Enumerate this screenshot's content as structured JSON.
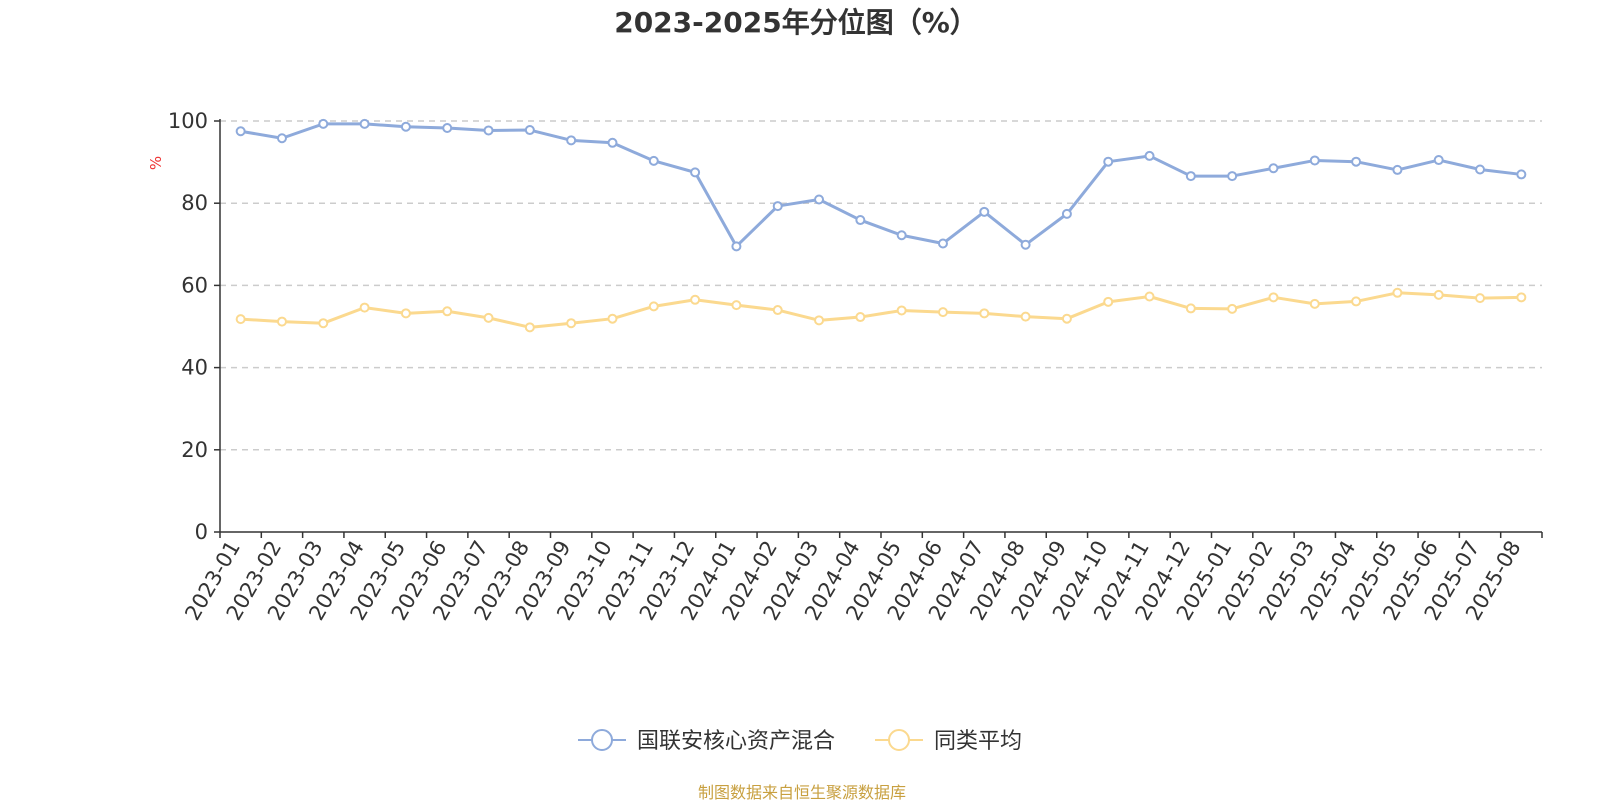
{
  "chart_data": {
    "type": "line",
    "title": "2023-2025年分位图（%）",
    "ylabel": "%",
    "ylim": [
      0,
      100
    ],
    "yticks": [
      0,
      20,
      40,
      60,
      80,
      100
    ],
    "grid": true,
    "legend_position": "bottom-center",
    "categories": [
      "2023-01",
      "2023-02",
      "2023-03",
      "2023-04",
      "2023-05",
      "2023-06",
      "2023-07",
      "2023-08",
      "2023-09",
      "2023-10",
      "2023-11",
      "2023-12",
      "2024-01",
      "2024-02",
      "2024-03",
      "2024-04",
      "2024-05",
      "2024-06",
      "2024-07",
      "2024-08",
      "2024-09",
      "2024-10",
      "2024-11",
      "2024-12",
      "2025-01",
      "2025-02",
      "2025-03",
      "2025-04",
      "2025-05",
      "2025-06",
      "2025-07",
      "2025-08"
    ],
    "series": [
      {
        "name": "国联安核心资产混合",
        "color": "#8eaadb",
        "values": [
          97.5,
          95.8,
          99.3,
          99.3,
          98.6,
          98.3,
          97.7,
          97.8,
          95.3,
          94.7,
          90.3,
          87.5,
          69.5,
          79.3,
          80.9,
          75.9,
          72.2,
          70.2,
          77.9,
          69.9,
          77.4,
          90.1,
          91.5,
          86.6,
          86.6,
          88.5,
          90.4,
          90.1,
          88.1,
          90.5,
          88.2,
          87.0
        ]
      },
      {
        "name": "同类平均",
        "color": "#fbd98f",
        "values": [
          51.8,
          51.2,
          50.8,
          54.6,
          53.2,
          53.7,
          52.1,
          49.8,
          50.8,
          51.9,
          54.9,
          56.5,
          55.2,
          54.0,
          51.5,
          52.3,
          53.9,
          53.5,
          53.2,
          52.4,
          51.9,
          56.0,
          57.3,
          54.4,
          54.3,
          57.1,
          55.5,
          56.1,
          58.2,
          57.7,
          56.9,
          57.1
        ]
      }
    ],
    "source_text": "制图数据来自恒生聚源数据库"
  },
  "colors": {
    "axis": "#333333",
    "grid": "#cccccc",
    "ylabel": "#ee3333",
    "source": "#c8a040"
  }
}
